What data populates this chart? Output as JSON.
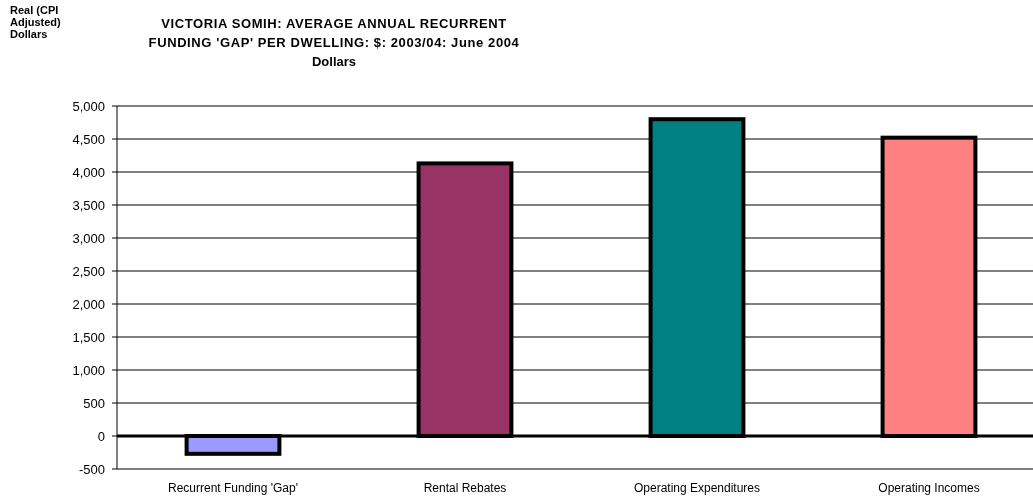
{
  "chart_data": {
    "type": "bar",
    "title": "VICTORIA SOMIH: AVERAGE ANNUAL RECURRENT FUNDING 'GAP' PER DWELLING: $: 2003/04: June 2004",
    "subtitle": "Dollars",
    "annotations": [
      "Real (CPI Adjusted) Dollars"
    ],
    "categories": [
      "Recurrent Funding 'Gap'",
      "Rental Rebates",
      "Operating Expenditures",
      "Operating Incomes"
    ],
    "values": [
      -270,
      4130,
      4800,
      4520
    ],
    "colors": [
      "#9999ff",
      "#993366",
      "#008080",
      "#ff8080"
    ],
    "ylim": [
      -500,
      5000
    ],
    "yticks": [
      {
        "value": -500,
        "label": "-500"
      },
      0,
      500,
      {
        "value": 1000,
        "label": "1,000"
      },
      {
        "value": 1500,
        "label": "1,500"
      },
      {
        "value": 2000,
        "label": "2,000"
      },
      {
        "value": 2500,
        "label": "2,500"
      },
      {
        "value": 3000,
        "label": "3,000"
      },
      {
        "value": 3500,
        "label": "3,500"
      },
      {
        "value": 4000,
        "label": "4,000"
      },
      {
        "value": 4500,
        "label": "4,500"
      },
      {
        "value": 5000,
        "label": "5,000"
      }
    ],
    "grid": "y"
  }
}
